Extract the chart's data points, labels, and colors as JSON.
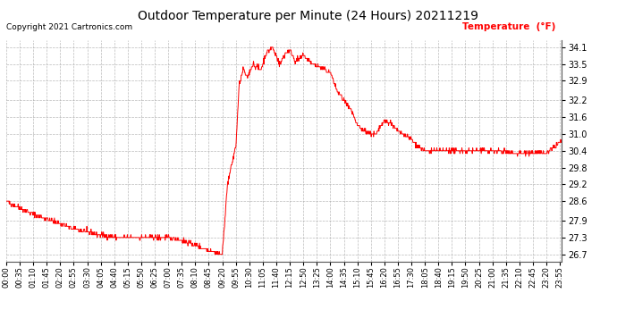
{
  "title": "Outdoor Temperature per Minute (24 Hours) 20211219",
  "copyright": "Copyright 2021 Cartronics.com",
  "legend_label": "Temperature  (°F)",
  "line_color": "red",
  "background_color": "white",
  "grid_color": "#aaaaaa",
  "y_ticks": [
    26.7,
    27.3,
    27.9,
    28.6,
    29.2,
    29.8,
    30.4,
    31.0,
    31.6,
    32.2,
    32.9,
    33.5,
    34.1
  ],
  "ylim": [
    26.45,
    34.35
  ],
  "x_tick_labels": [
    "00:00",
    "00:35",
    "01:10",
    "01:45",
    "02:20",
    "02:55",
    "03:30",
    "04:05",
    "04:40",
    "05:15",
    "05:50",
    "06:25",
    "07:00",
    "07:35",
    "08:10",
    "08:45",
    "09:20",
    "09:55",
    "10:30",
    "11:05",
    "11:40",
    "12:15",
    "12:50",
    "13:25",
    "14:00",
    "14:35",
    "15:10",
    "15:45",
    "16:20",
    "16:55",
    "17:30",
    "18:05",
    "18:40",
    "19:15",
    "19:50",
    "20:25",
    "21:00",
    "21:35",
    "22:10",
    "22:45",
    "23:20",
    "23:55"
  ]
}
